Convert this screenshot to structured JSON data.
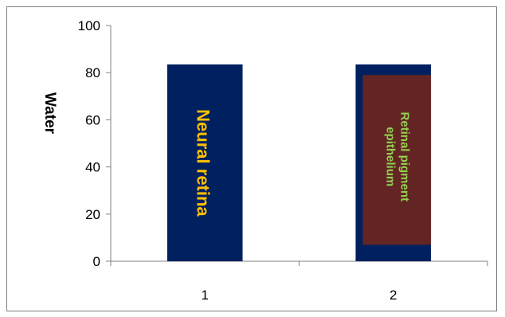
{
  "chart_data": {
    "type": "bar",
    "categories": [
      "1",
      "2"
    ],
    "values": [
      83.5,
      83.5
    ],
    "ylabel": "Water",
    "xlabel": "",
    "ylim": [
      0,
      100
    ],
    "yticks": [
      0,
      20,
      40,
      60,
      80,
      100
    ],
    "grid": false,
    "legend": "none",
    "bar_color": "#002060",
    "inner_box": {
      "range": [
        7,
        79
      ],
      "color": "#632523"
    },
    "annotations": [
      {
        "text": "Neural retina",
        "category": "1",
        "color": "#FFC000"
      },
      {
        "text": "Retinal pigment",
        "category": "2",
        "color": "#92D050"
      },
      {
        "text": "epithelium",
        "category": "2",
        "color": "#92D050"
      }
    ]
  }
}
